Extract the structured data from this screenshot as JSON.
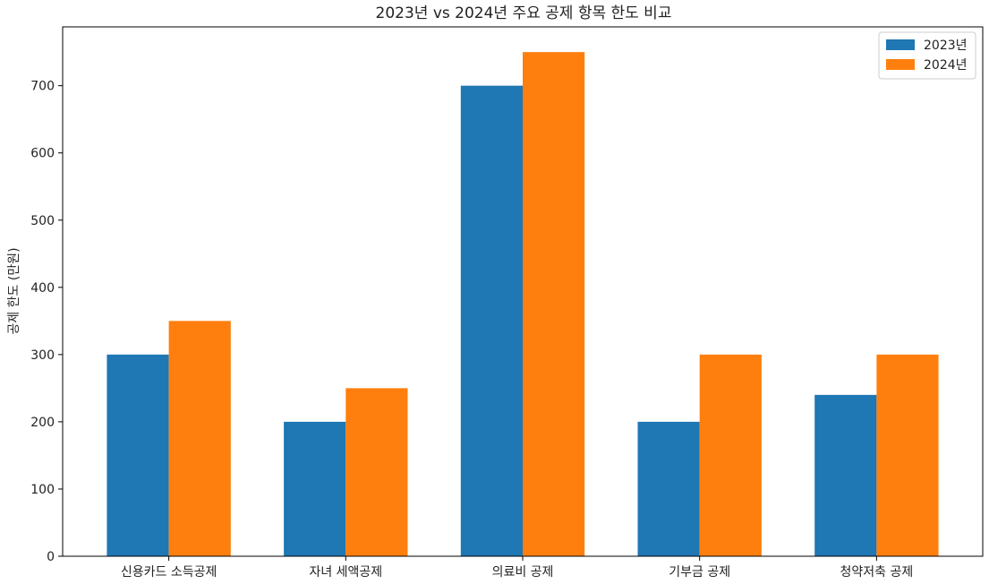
{
  "chart_data": {
    "type": "bar",
    "title": "2023년 vs 2024년 주요 공제 항목 한도 비교",
    "xlabel": "",
    "ylabel": "공제 한도 (만원)",
    "categories": [
      "신용카드 소득공제",
      "자녀 세액공제",
      "의료비 공제",
      "기부금 공제",
      "청약저축 공제"
    ],
    "series": [
      {
        "name": "2023년",
        "color": "#1f77b4",
        "values": [
          300,
          200,
          700,
          200,
          240
        ]
      },
      {
        "name": "2024년",
        "color": "#ff7f0e",
        "values": [
          350,
          250,
          750,
          300,
          300
        ]
      }
    ],
    "ylim": [
      0,
      787.5
    ],
    "yticks": [
      0,
      100,
      200,
      300,
      400,
      500,
      600,
      700
    ],
    "legend": "top-right",
    "grid": false
  }
}
